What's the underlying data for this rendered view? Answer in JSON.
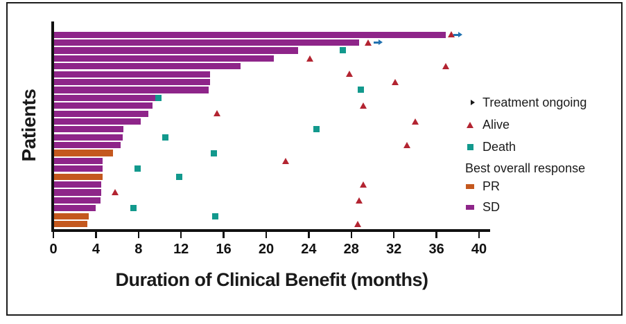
{
  "chart_data": {
    "type": "bar",
    "subtype": "swimmer-plot",
    "orientation": "horizontal",
    "title": "",
    "xlabel": "Duration of Clinical Benefit (months)",
    "ylabel": "Patients",
    "xlim": [
      0,
      40
    ],
    "x_ticks": [
      0,
      4,
      8,
      12,
      16,
      20,
      24,
      28,
      32,
      36,
      40
    ],
    "grid": false,
    "legend_position": "right",
    "legend": {
      "ongoing_label": "Treatment ongoing",
      "alive_label": "Alive",
      "death_label": "Death",
      "response_header": "Best overall response",
      "pr_label": "PR",
      "sd_label": "SD"
    },
    "colors": {
      "sd": "#8E2589",
      "pr": "#C4581E",
      "death": "#12998D",
      "alive": "#B32431",
      "ongoing": "#2272B0",
      "axis": "#111111"
    },
    "patients": [
      {
        "response": "SD",
        "duration_months": 36.9,
        "event": "alive",
        "event_month": 37.4,
        "ongoing": true,
        "ongoing_month": 38.0
      },
      {
        "response": "SD",
        "duration_months": 28.7,
        "event": "alive",
        "event_month": 29.6,
        "ongoing": true,
        "ongoing_month": 30.5
      },
      {
        "response": "SD",
        "duration_months": 23.0,
        "event": "death",
        "event_month": 27.2,
        "ongoing": false
      },
      {
        "response": "SD",
        "duration_months": 20.7,
        "event": "alive",
        "event_month": 24.1,
        "ongoing": false
      },
      {
        "response": "SD",
        "duration_months": 17.6,
        "event": "alive",
        "event_month": 36.9,
        "ongoing": false
      },
      {
        "response": "SD",
        "duration_months": 14.7,
        "event": "alive",
        "event_month": 27.8,
        "ongoing": false
      },
      {
        "response": "SD",
        "duration_months": 14.7,
        "event": "alive",
        "event_month": 32.1,
        "ongoing": false
      },
      {
        "response": "SD",
        "duration_months": 14.6,
        "event": "death",
        "event_month": 28.9,
        "ongoing": false
      },
      {
        "response": "SD",
        "duration_months": 9.6,
        "event": "death",
        "event_month": 9.9,
        "ongoing": false
      },
      {
        "response": "SD",
        "duration_months": 9.3,
        "event": "alive",
        "event_month": 29.1,
        "ongoing": false
      },
      {
        "response": "SD",
        "duration_months": 8.9,
        "event": "alive",
        "event_month": 15.4,
        "ongoing": false
      },
      {
        "response": "SD",
        "duration_months": 8.2,
        "event": "alive",
        "event_month": 34.0,
        "ongoing": false
      },
      {
        "response": "SD",
        "duration_months": 6.6,
        "event": "death",
        "event_month": 24.7,
        "ongoing": false
      },
      {
        "response": "SD",
        "duration_months": 6.5,
        "event": "death",
        "event_month": 10.5,
        "ongoing": false
      },
      {
        "response": "SD",
        "duration_months": 6.3,
        "event": "alive",
        "event_month": 33.2,
        "ongoing": false
      },
      {
        "response": "PR",
        "duration_months": 5.6,
        "event": "death",
        "event_month": 15.1,
        "ongoing": false
      },
      {
        "response": "SD",
        "duration_months": 4.6,
        "event": "alive",
        "event_month": 21.8,
        "ongoing": false
      },
      {
        "response": "SD",
        "duration_months": 4.6,
        "event": "death",
        "event_month": 7.9,
        "ongoing": false
      },
      {
        "response": "PR",
        "duration_months": 4.6,
        "event": "death",
        "event_month": 11.8,
        "ongoing": false
      },
      {
        "response": "SD",
        "duration_months": 4.5,
        "event": "alive",
        "event_month": 29.1,
        "ongoing": false
      },
      {
        "response": "SD",
        "duration_months": 4.5,
        "event": "alive",
        "event_month": 5.8,
        "ongoing": false
      },
      {
        "response": "SD",
        "duration_months": 4.4,
        "event": "alive",
        "event_month": 28.7,
        "ongoing": false
      },
      {
        "response": "SD",
        "duration_months": 4.0,
        "event": "death",
        "event_month": 7.5,
        "ongoing": false
      },
      {
        "response": "PR",
        "duration_months": 3.3,
        "event": "death",
        "event_month": 15.2,
        "ongoing": false
      },
      {
        "response": "PR",
        "duration_months": 3.2,
        "event": "alive",
        "event_month": 28.6,
        "ongoing": false
      }
    ]
  }
}
